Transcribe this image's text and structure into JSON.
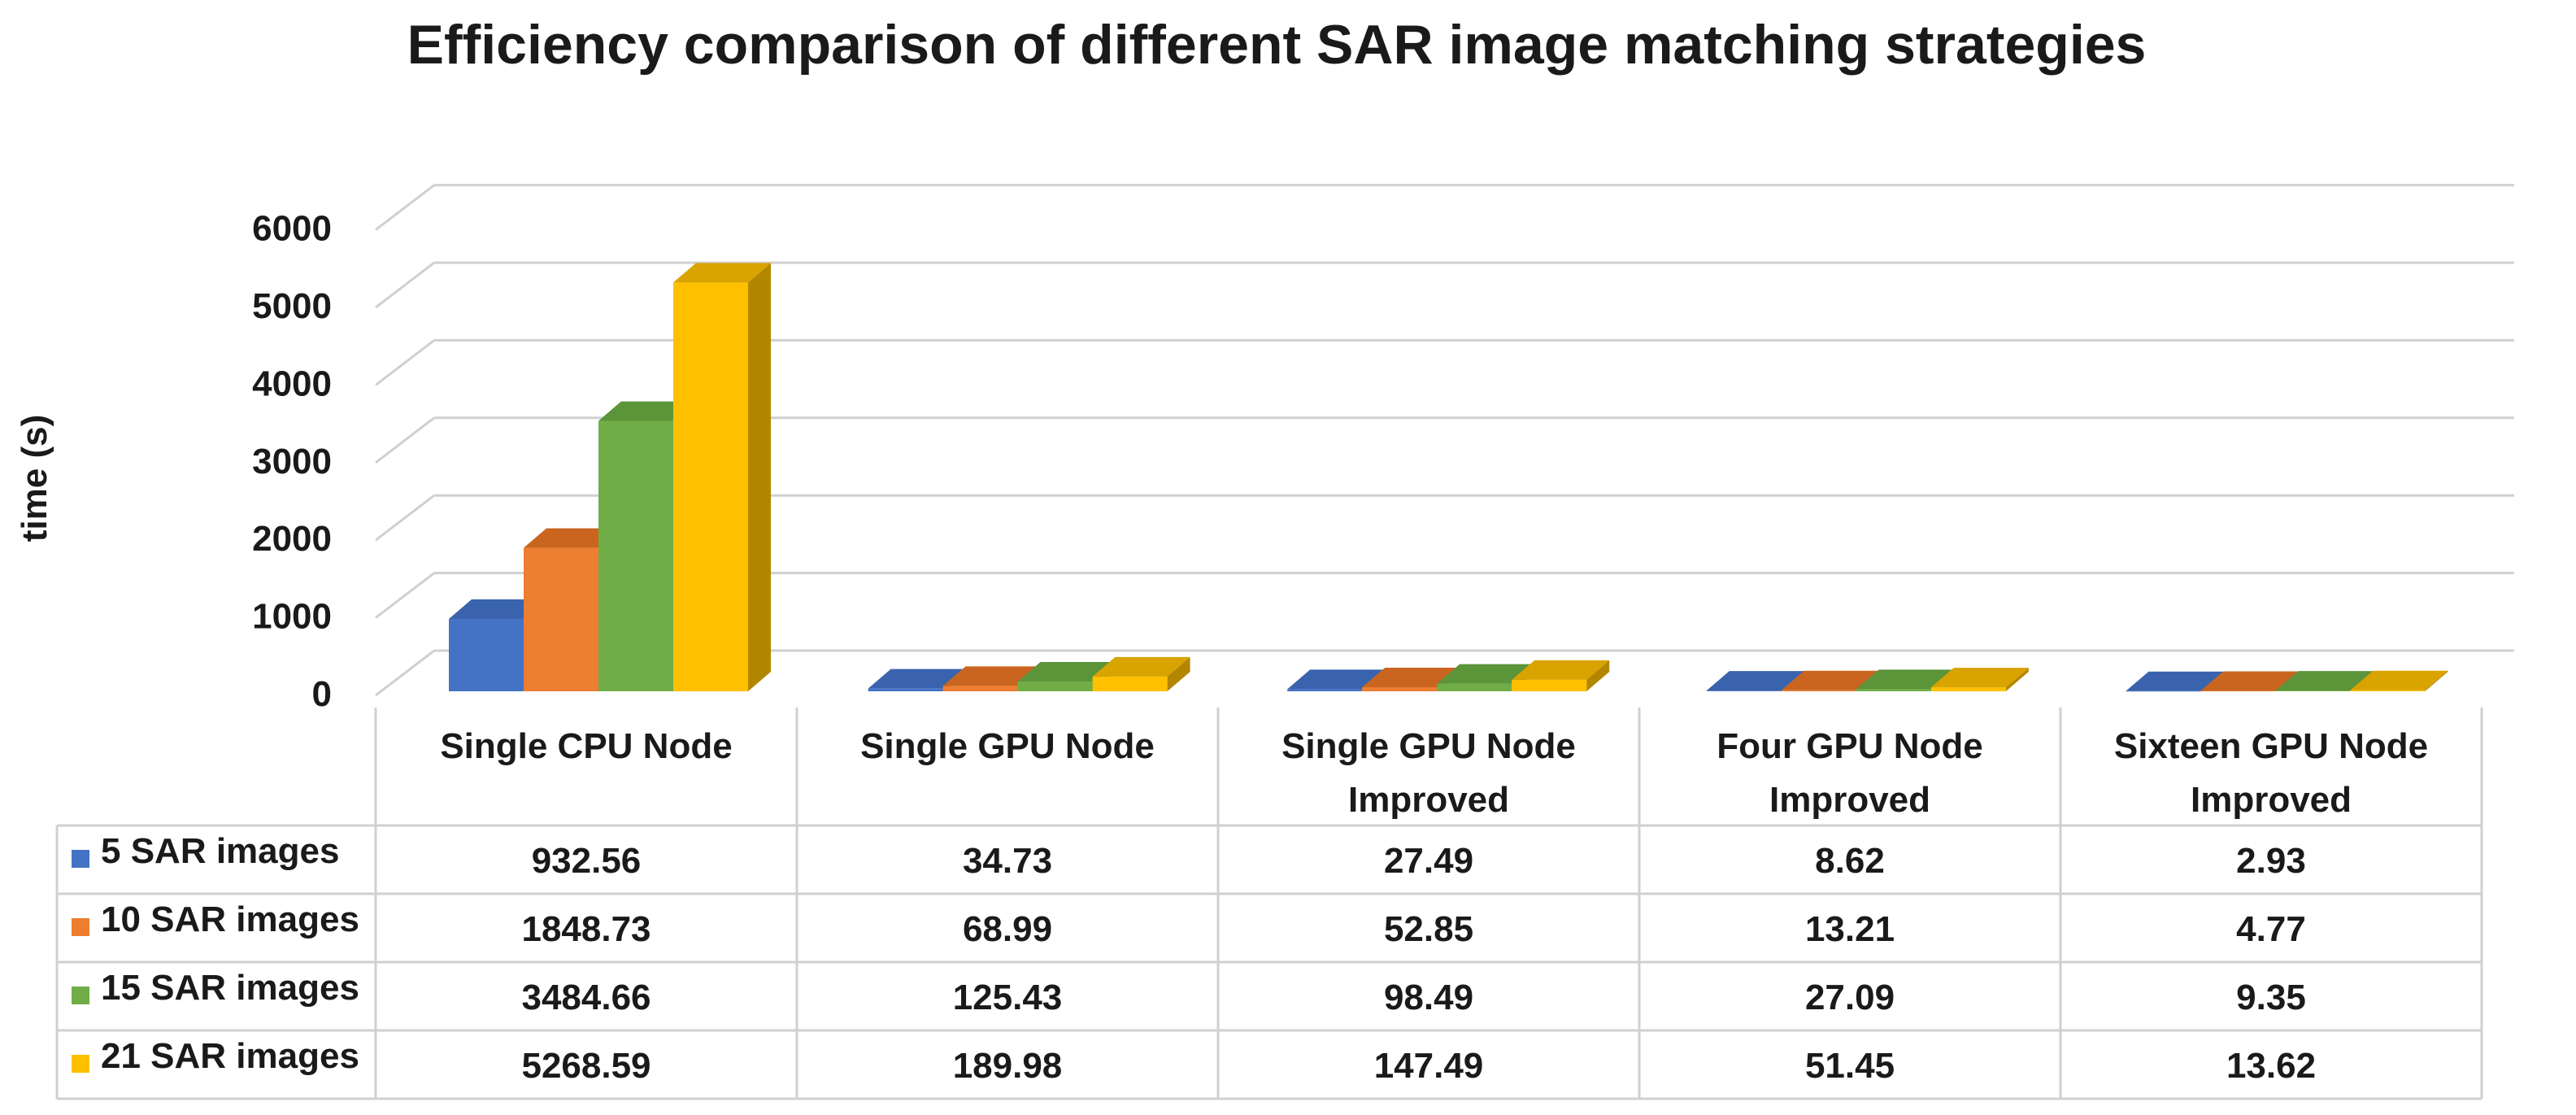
{
  "chart_data": {
    "type": "bar",
    "title": "Efficiency comparison of different SAR image matching strategies",
    "xlabel": "",
    "ylabel": "time (s)",
    "ylim": [
      0,
      6000
    ],
    "yticks": [
      "0",
      "1000",
      "2000",
      "3000",
      "4000",
      "5000",
      "6000"
    ],
    "grid": true,
    "legend_placement": "left of data table",
    "categories": [
      [
        "Single CPU Node"
      ],
      [
        "Single GPU Node"
      ],
      [
        "Single GPU Node",
        "Improved"
      ],
      [
        "Four GPU Node",
        "Improved"
      ],
      [
        "Sixteen GPU Node",
        "Improved"
      ]
    ],
    "series": [
      {
        "name": "5 SAR images",
        "color": "#4472C4",
        "side_color": "#2F5597",
        "top_color": "#3A63AE",
        "values": [
          932.56,
          34.73,
          27.49,
          8.62,
          2.93
        ],
        "labels": [
          "932.56",
          "34.73",
          "27.49",
          "8.62",
          "2.93"
        ]
      },
      {
        "name": "10 SAR images",
        "color": "#ED7D31",
        "side_color": "#B65A1C",
        "top_color": "#C9651F",
        "values": [
          1848.73,
          68.99,
          52.85,
          13.21,
          4.77
        ],
        "labels": [
          "1848.73",
          "68.99",
          "52.85",
          "13.21",
          "4.77"
        ]
      },
      {
        "name": "15 SAR images",
        "color": "#70AD47",
        "side_color": "#4E7F2F",
        "top_color": "#5C9439",
        "values": [
          3484.66,
          125.43,
          98.49,
          27.09,
          9.35
        ],
        "labels": [
          "3484.66",
          "125.43",
          "98.49",
          "27.09",
          "9.35"
        ]
      },
      {
        "name": "21 SAR images",
        "color": "#FFC000",
        "side_color": "#B38600",
        "top_color": "#D9A300",
        "values": [
          5268.59,
          189.98,
          147.49,
          51.45,
          13.62
        ],
        "labels": [
          "5268.59",
          "189.98",
          "147.49",
          "51.45",
          "13.62"
        ]
      }
    ]
  }
}
